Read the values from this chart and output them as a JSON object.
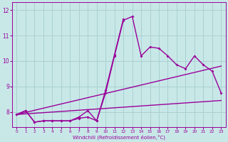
{
  "xlabel": "Windchill (Refroidissement éolien,°C)",
  "bg_color": "#c8e8e8",
  "grid_color": "#aad0d0",
  "line_color": "#990099",
  "x_values": [
    0,
    1,
    2,
    3,
    4,
    5,
    6,
    7,
    8,
    9,
    10,
    11,
    12,
    13,
    14,
    15,
    16,
    17,
    18,
    19,
    20,
    21,
    22,
    23
  ],
  "line1": [
    7.9,
    8.05,
    7.6,
    7.65,
    7.65,
    7.65,
    7.65,
    7.8,
    8.05,
    7.65,
    8.75,
    10.2,
    11.6,
    11.75,
    10.2,
    10.55,
    10.5,
    10.2,
    9.85,
    9.7,
    10.2,
    9.85,
    9.6,
    8.75
  ],
  "line2_x": [
    0,
    1,
    2,
    3,
    4,
    5,
    6,
    7,
    8,
    9,
    10,
    11,
    12
  ],
  "line2_y": [
    7.9,
    8.05,
    7.6,
    7.65,
    7.65,
    7.65,
    7.65,
    7.75,
    7.8,
    7.65,
    8.85,
    10.25,
    11.65
  ],
  "line3_x": [
    0,
    23
  ],
  "line3_y": [
    7.9,
    8.45
  ],
  "line4_x": [
    0,
    23
  ],
  "line4_y": [
    7.9,
    9.8
  ],
  "ylim": [
    7.4,
    12.3
  ],
  "xlim": [
    -0.5,
    23.5
  ],
  "yticks": [
    8,
    9,
    10,
    11,
    12
  ]
}
